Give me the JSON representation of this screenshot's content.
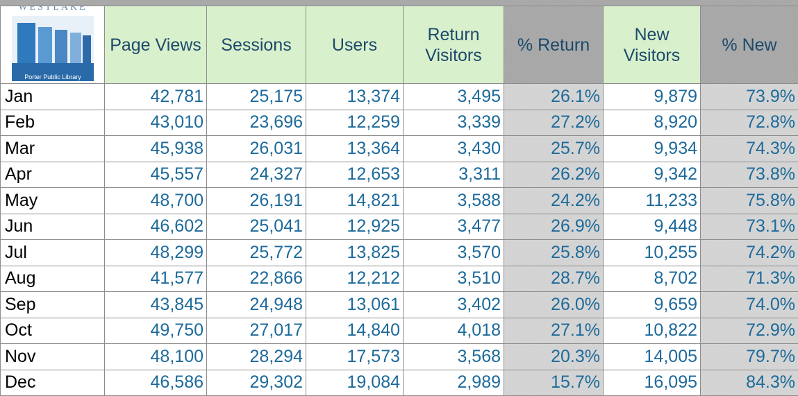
{
  "logo": {
    "top": "WESTLAKE",
    "caption": "Porter Public Library"
  },
  "table": {
    "headers": [
      "Page Views",
      "Sessions",
      "Users",
      "Return Visitors",
      "% Return",
      "New Visitors",
      "% New"
    ],
    "rows": [
      [
        "Jan",
        "42,781",
        "25,175",
        "13,374",
        "3,495",
        "26.1%",
        "9,879",
        "73.9%"
      ],
      [
        "Feb",
        "43,010",
        "23,696",
        "12,259",
        "3,339",
        "27.2%",
        "8,920",
        "72.8%"
      ],
      [
        "Mar",
        "45,938",
        "26,031",
        "13,364",
        "3,430",
        "25.7%",
        "9,934",
        "74.3%"
      ],
      [
        "Apr",
        "45,557",
        "24,327",
        "12,653",
        "3,311",
        "26.2%",
        "9,342",
        "73.8%"
      ],
      [
        "May",
        "48,700",
        "26,191",
        "14,821",
        "3,588",
        "24.2%",
        "11,233",
        "75.8%"
      ],
      [
        "Jun",
        "46,602",
        "25,041",
        "12,925",
        "3,477",
        "26.9%",
        "9,448",
        "73.1%"
      ],
      [
        "Jul",
        "48,299",
        "25,772",
        "13,825",
        "3,570",
        "25.8%",
        "10,255",
        "74.2%"
      ],
      [
        "Aug",
        "41,577",
        "22,866",
        "12,212",
        "3,510",
        "28.7%",
        "8,702",
        "71.3%"
      ],
      [
        "Sep",
        "43,845",
        "24,948",
        "13,061",
        "3,402",
        "26.0%",
        "9,659",
        "74.0%"
      ],
      [
        "Oct",
        "49,750",
        "27,017",
        "14,840",
        "4,018",
        "27.1%",
        "10,822",
        "72.9%"
      ],
      [
        "Nov",
        "48,100",
        "28,294",
        "17,573",
        "3,568",
        "20.3%",
        "14,005",
        "79.7%"
      ],
      [
        "Dec",
        "46,586",
        "29,302",
        "19,084",
        "2,989",
        "15.7%",
        "16,095",
        "84.3%"
      ]
    ]
  }
}
